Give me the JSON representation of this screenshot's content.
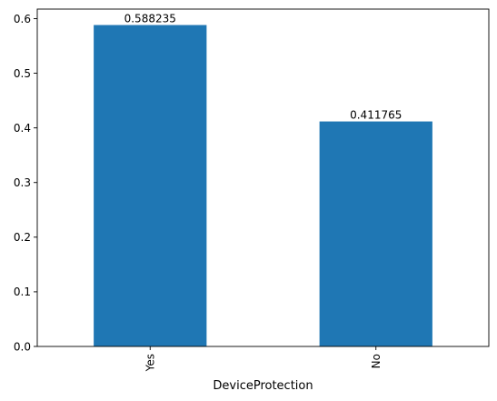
{
  "chart_data": {
    "type": "bar",
    "categories": [
      "Yes",
      "No"
    ],
    "values": [
      0.588235,
      0.411765
    ],
    "data_labels": [
      "0.588235",
      "0.411765"
    ],
    "title": "",
    "xlabel": "DeviceProtection",
    "ylabel": "",
    "ylim": [
      0,
      0.6174
    ],
    "yticks": [
      0.0,
      0.1,
      0.2,
      0.3,
      0.4,
      0.5,
      0.6
    ],
    "ytick_labels": [
      "0.0",
      "0.1",
      "0.2",
      "0.3",
      "0.4",
      "0.5",
      "0.6"
    ],
    "xtick_rotation": "vertical",
    "grid": false,
    "legend": "none",
    "bar_color": "#1f77b4",
    "axis_color": "#000000"
  }
}
